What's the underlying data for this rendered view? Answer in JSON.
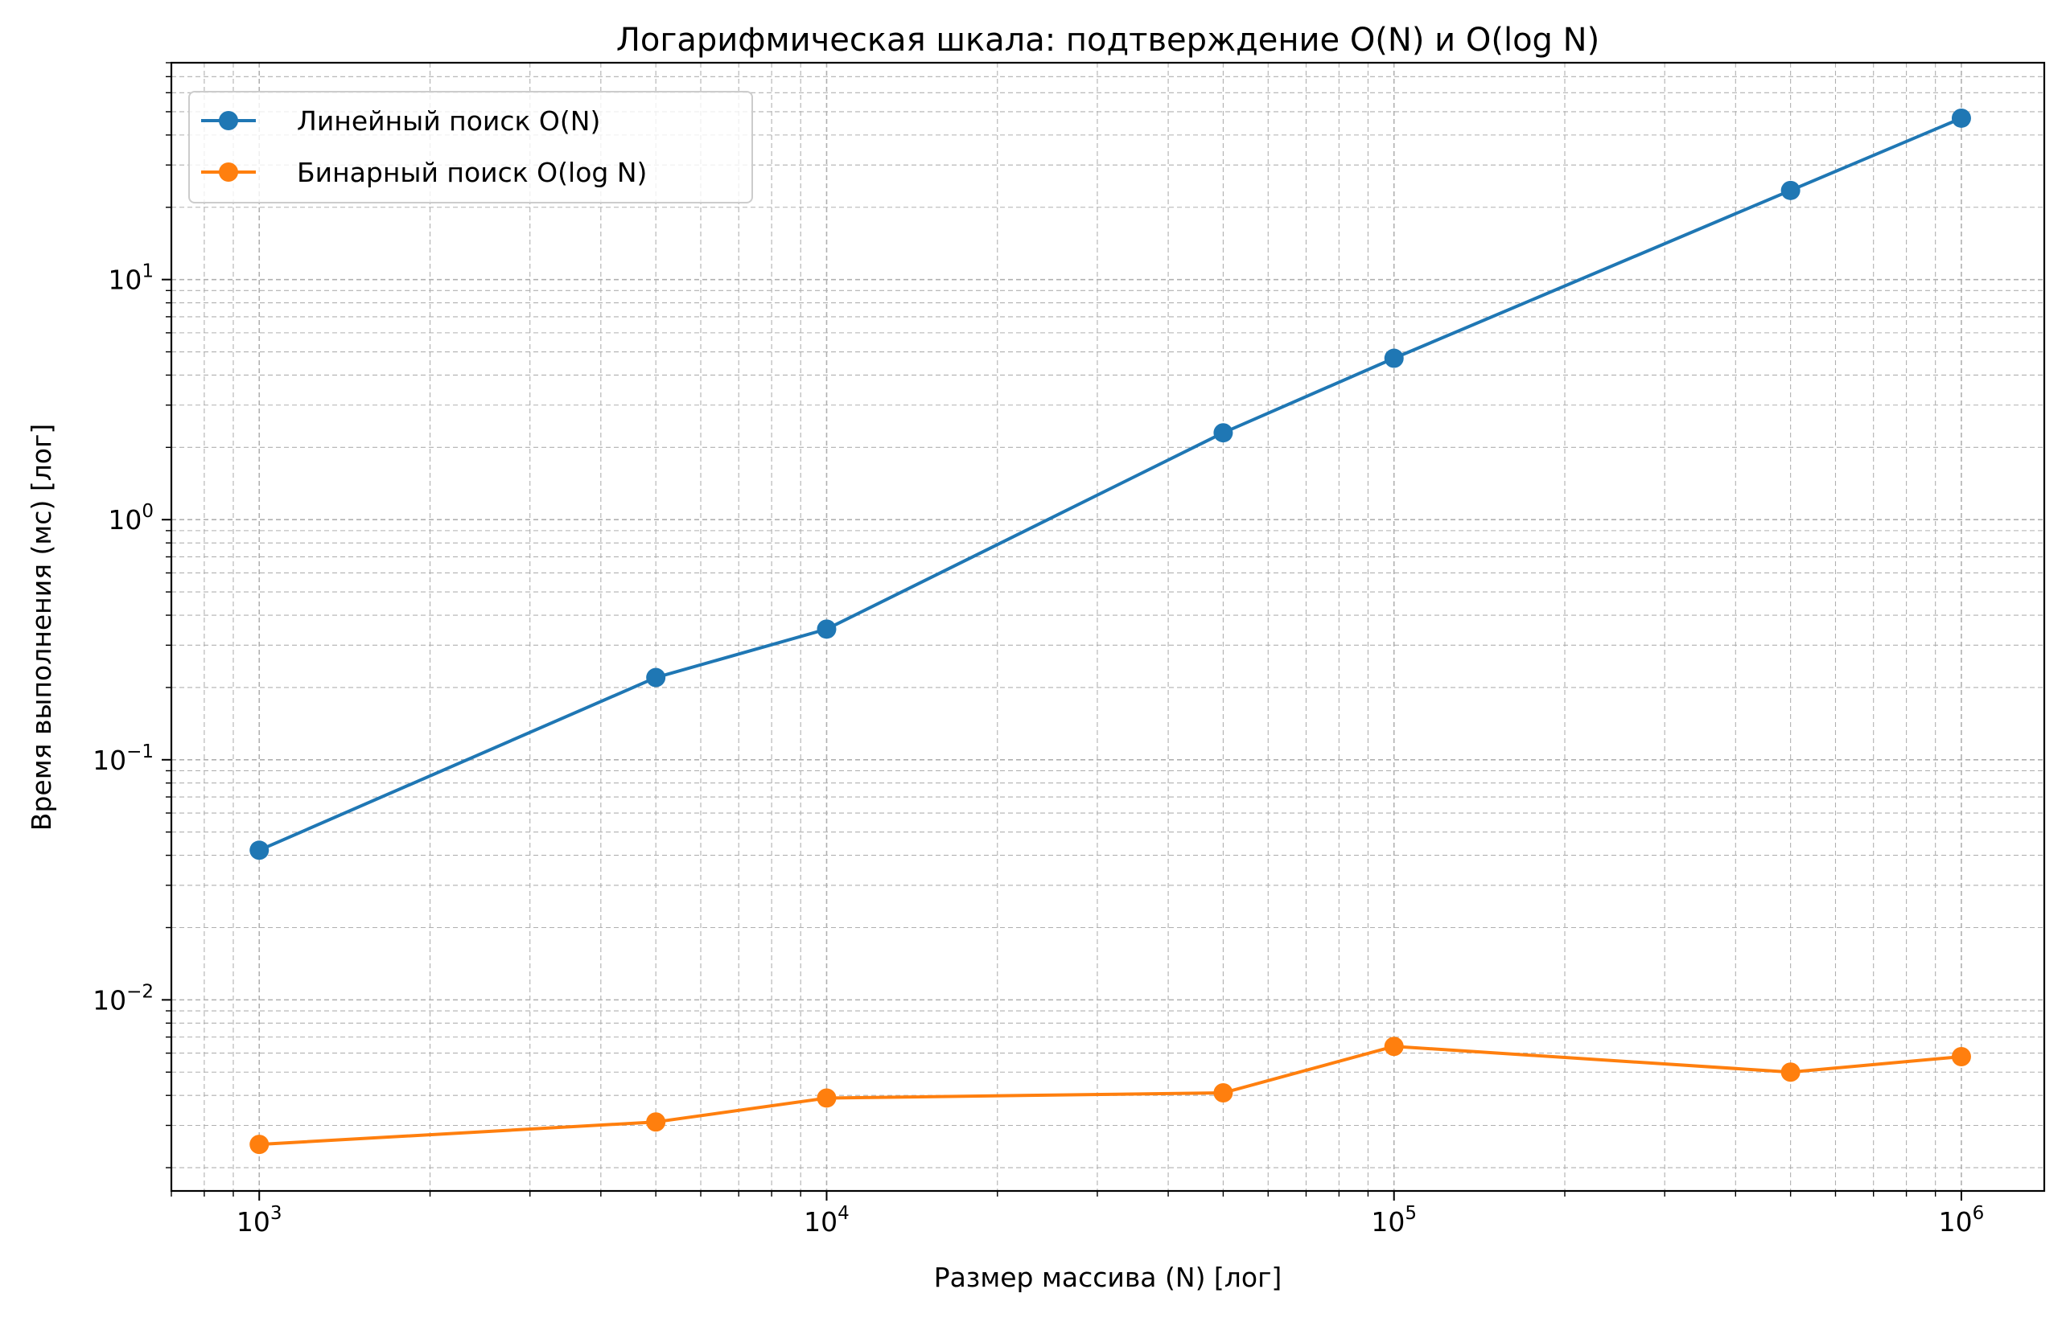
{
  "chart_data": {
    "type": "line",
    "title": "Логарифмическая шкала: подтверждение O(N) и O(log N)",
    "xlabel": "Размер массива (N) [лог]",
    "ylabel": "Время выполнения (мс) [лог]",
    "xscale": "log",
    "yscale": "log",
    "xlim": [
      700,
      1400000
    ],
    "ylim": [
      0.0016,
      80
    ],
    "grid": true,
    "grid_style": "dashed, major and minor",
    "legend_position": "top-left",
    "x_ticks": [
      {
        "base": "10",
        "exp": "3"
      },
      {
        "base": "10",
        "exp": "4"
      },
      {
        "base": "10",
        "exp": "5"
      },
      {
        "base": "10",
        "exp": "6"
      }
    ],
    "y_ticks": [
      {
        "base": "10",
        "exp": "−2"
      },
      {
        "base": "10",
        "exp": "−1"
      },
      {
        "base": "10",
        "exp": "0"
      },
      {
        "base": "10",
        "exp": "1"
      }
    ],
    "x": [
      1000,
      5000,
      10000,
      50000,
      100000,
      500000,
      1000000
    ],
    "series": [
      {
        "name": "Линейный поиск O(N)",
        "color": "#1f77b4",
        "values": [
          0.042,
          0.22,
          0.35,
          2.3,
          4.7,
          23.5,
          47
        ]
      },
      {
        "name": "Бинарный поиск O(log N)",
        "color": "#ff7f0e",
        "values": [
          0.0025,
          0.0031,
          0.0039,
          0.0041,
          0.0064,
          0.005,
          0.0058
        ]
      }
    ]
  }
}
